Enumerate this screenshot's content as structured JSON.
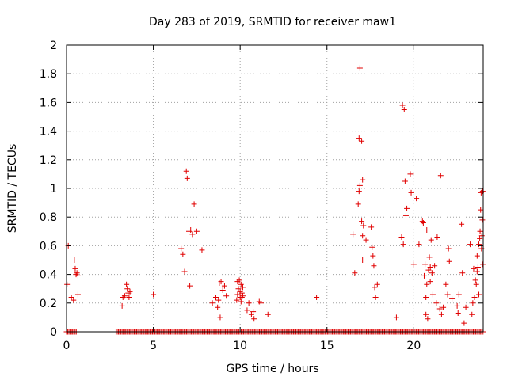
{
  "chart_data": {
    "type": "scatter",
    "title": "Day 283 of 2019, SRMTID for receiver maw1",
    "xlabel": "GPS time / hours",
    "ylabel": "SRMTID / TECUs",
    "xlim": [
      0,
      24
    ],
    "ylim": [
      0,
      2
    ],
    "xticks": [
      0,
      5,
      10,
      15,
      20
    ],
    "yticks": [
      0,
      0.2,
      0.4,
      0.6,
      0.8,
      1,
      1.2,
      1.4,
      1.6,
      1.8,
      2
    ],
    "xtick_labels": [
      "0",
      "5",
      "10",
      "15",
      "20"
    ],
    "ytick_labels": [
      "0",
      "0.2",
      "0.4",
      "0.6",
      "0.8",
      "1",
      "1.2",
      "1.4",
      "1.6",
      "1.8",
      "2"
    ],
    "grid": true,
    "marker": "+",
    "marker_color": "#e00000",
    "zero_ranges": [
      [
        0.0,
        0.6
      ],
      [
        2.85,
        24.0
      ]
    ],
    "zero_step": 0.07,
    "points": [
      [
        0.03,
        0.33
      ],
      [
        0.1,
        0.6
      ],
      [
        0.28,
        0.24
      ],
      [
        0.4,
        0.22
      ],
      [
        0.45,
        0.5
      ],
      [
        0.5,
        0.44
      ],
      [
        0.55,
        0.4
      ],
      [
        0.6,
        0.41
      ],
      [
        0.66,
        0.39
      ],
      [
        0.66,
        0.26
      ],
      [
        3.2,
        0.18
      ],
      [
        3.25,
        0.24
      ],
      [
        3.35,
        0.25
      ],
      [
        3.45,
        0.33
      ],
      [
        3.5,
        0.3
      ],
      [
        3.55,
        0.27
      ],
      [
        3.6,
        0.24
      ],
      [
        3.65,
        0.28
      ],
      [
        5.0,
        0.26
      ],
      [
        6.6,
        0.58
      ],
      [
        6.7,
        0.54
      ],
      [
        6.8,
        0.42
      ],
      [
        6.9,
        1.12
      ],
      [
        6.95,
        1.07
      ],
      [
        7.05,
        0.7
      ],
      [
        7.1,
        0.32
      ],
      [
        7.15,
        0.71
      ],
      [
        7.25,
        0.68
      ],
      [
        7.35,
        0.89
      ],
      [
        7.5,
        0.7
      ],
      [
        7.8,
        0.57
      ],
      [
        8.4,
        0.2
      ],
      [
        8.6,
        0.24
      ],
      [
        8.7,
        0.17
      ],
      [
        8.75,
        0.22
      ],
      [
        8.8,
        0.34
      ],
      [
        8.85,
        0.1
      ],
      [
        8.9,
        0.35
      ],
      [
        9.0,
        0.29
      ],
      [
        9.1,
        0.32
      ],
      [
        9.2,
        0.25
      ],
      [
        9.8,
        0.22
      ],
      [
        9.85,
        0.26
      ],
      [
        9.85,
        0.35
      ],
      [
        9.9,
        0.3
      ],
      [
        9.95,
        0.36
      ],
      [
        10.0,
        0.28
      ],
      [
        10.0,
        0.24
      ],
      [
        10.05,
        0.33
      ],
      [
        10.05,
        0.21
      ],
      [
        10.1,
        0.24
      ],
      [
        10.1,
        0.27
      ],
      [
        10.15,
        0.25
      ],
      [
        10.15,
        0.31
      ],
      [
        10.4,
        0.15
      ],
      [
        10.5,
        0.2
      ],
      [
        10.65,
        0.12
      ],
      [
        10.75,
        0.14
      ],
      [
        10.8,
        0.09
      ],
      [
        11.1,
        0.21
      ],
      [
        11.2,
        0.2
      ],
      [
        11.6,
        0.12
      ],
      [
        14.4,
        0.24
      ],
      [
        16.5,
        0.68
      ],
      [
        16.6,
        0.41
      ],
      [
        16.8,
        0.89
      ],
      [
        16.85,
        1.35
      ],
      [
        16.85,
        0.98
      ],
      [
        16.9,
        1.84
      ],
      [
        16.9,
        1.02
      ],
      [
        17.0,
        1.33
      ],
      [
        17.0,
        0.77
      ],
      [
        17.05,
        0.67
      ],
      [
        17.05,
        0.5
      ],
      [
        17.05,
        1.06
      ],
      [
        17.1,
        0.74
      ],
      [
        17.25,
        0.64
      ],
      [
        17.55,
        0.73
      ],
      [
        17.6,
        0.59
      ],
      [
        17.65,
        0.53
      ],
      [
        17.7,
        0.46
      ],
      [
        17.75,
        0.31
      ],
      [
        17.8,
        0.24
      ],
      [
        17.9,
        0.33
      ],
      [
        19.0,
        0.1
      ],
      [
        19.3,
        0.66
      ],
      [
        19.35,
        1.58
      ],
      [
        19.4,
        0.61
      ],
      [
        19.45,
        1.55
      ],
      [
        19.5,
        1.05
      ],
      [
        19.55,
        0.81
      ],
      [
        19.6,
        0.86
      ],
      [
        19.8,
        1.1
      ],
      [
        19.85,
        0.97
      ],
      [
        20.0,
        0.47
      ],
      [
        20.15,
        0.93
      ],
      [
        20.3,
        0.61
      ],
      [
        20.5,
        0.77
      ],
      [
        20.55,
        0.76
      ],
      [
        20.6,
        0.39
      ],
      [
        20.65,
        0.47
      ],
      [
        20.7,
        0.24
      ],
      [
        20.7,
        0.12
      ],
      [
        20.75,
        0.71
      ],
      [
        20.75,
        0.33
      ],
      [
        20.8,
        0.09
      ],
      [
        20.85,
        0.43
      ],
      [
        20.9,
        0.52
      ],
      [
        20.95,
        0.45
      ],
      [
        20.95,
        0.35
      ],
      [
        21.0,
        0.64
      ],
      [
        21.05,
        0.41
      ],
      [
        21.1,
        0.26
      ],
      [
        21.2,
        0.46
      ],
      [
        21.3,
        0.2
      ],
      [
        21.35,
        0.66
      ],
      [
        21.5,
        0.16
      ],
      [
        21.55,
        1.09
      ],
      [
        21.6,
        0.12
      ],
      [
        21.7,
        0.17
      ],
      [
        21.85,
        0.33
      ],
      [
        21.95,
        0.26
      ],
      [
        22.0,
        0.58
      ],
      [
        22.05,
        0.49
      ],
      [
        22.2,
        0.23
      ],
      [
        22.5,
        0.18
      ],
      [
        22.55,
        0.13
      ],
      [
        22.6,
        0.26
      ],
      [
        22.75,
        0.75
      ],
      [
        22.8,
        0.41
      ],
      [
        22.9,
        0.06
      ],
      [
        23.0,
        0.17
      ],
      [
        23.25,
        0.61
      ],
      [
        23.35,
        0.12
      ],
      [
        23.4,
        0.2
      ],
      [
        23.45,
        0.44
      ],
      [
        23.5,
        0.24
      ],
      [
        23.55,
        0.36
      ],
      [
        23.6,
        0.33
      ],
      [
        23.65,
        0.42
      ],
      [
        23.65,
        0.53
      ],
      [
        23.7,
        0.45
      ],
      [
        23.75,
        0.26
      ],
      [
        23.75,
        0.61
      ],
      [
        23.8,
        0.65
      ],
      [
        23.82,
        0.7
      ],
      [
        23.85,
        0.85
      ],
      [
        23.88,
        0.97
      ],
      [
        23.9,
        0.58
      ],
      [
        23.92,
        0.67
      ],
      [
        23.95,
        0.78
      ],
      [
        23.97,
        0.98
      ],
      [
        23.98,
        0.47
      ]
    ]
  }
}
